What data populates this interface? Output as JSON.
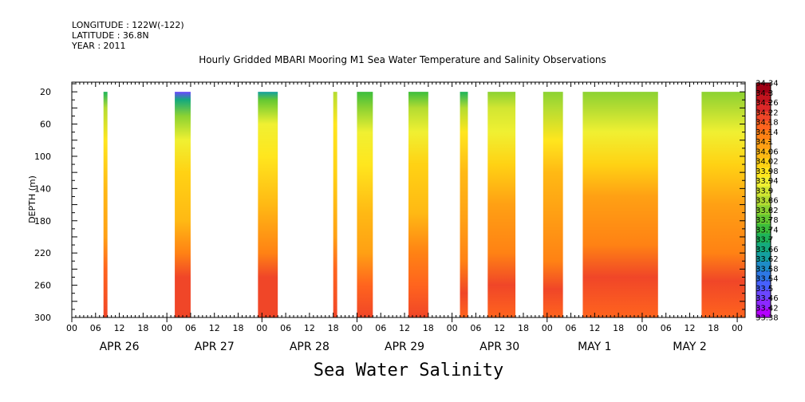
{
  "header": {
    "longitude": "LONGITUDE : 122W(-122)",
    "latitude": "LATITUDE : 36.8N",
    "year": "YEAR : 2011"
  },
  "chart_data": {
    "type": "heatmap",
    "title": "Hourly Gridded MBARI Mooring M1 Sea Water Temperature and Salinity Observations",
    "subtitle": "Sea Water Salinity",
    "ylabel": "DEPTH (m)",
    "y_direction": "down",
    "ylim": [
      300,
      8
    ],
    "yticks": [
      20,
      60,
      100,
      140,
      180,
      220,
      260,
      300
    ],
    "xlim": [
      0,
      170
    ],
    "x_unit": "hours since APR 26 00",
    "hour_tick_labels": [
      "00",
      "06",
      "12",
      "18",
      "00",
      "06",
      "12",
      "18",
      "00",
      "06",
      "12",
      "18",
      "00",
      "06",
      "12",
      "18",
      "00",
      "06",
      "12",
      "18",
      "00",
      "06",
      "12",
      "18",
      "00",
      "06",
      "12",
      "18",
      "00"
    ],
    "day_labels": [
      "APR 26",
      "APR 27",
      "APR 28",
      "APR 29",
      "APR 30",
      "MAY  1",
      "MAY  2"
    ],
    "colorbar": {
      "levels": [
        33.38,
        33.42,
        33.46,
        33.5,
        33.54,
        33.58,
        33.62,
        33.66,
        33.7,
        33.74,
        33.78,
        33.82,
        33.86,
        33.9,
        33.94,
        33.98,
        34.02,
        34.06,
        34.1,
        34.14,
        34.18,
        34.22,
        34.26,
        34.3,
        34.34
      ],
      "level_labels": [
        "33.38",
        "33.42",
        "33.46",
        "33.5",
        "33.54",
        "33.58",
        "33.62",
        "33.66",
        "33.7",
        "33.74",
        "33.78",
        "33.82",
        "33.86",
        "33.9",
        "33.94",
        "33.98",
        "34.02",
        "34.06",
        "34.1",
        "34.14",
        "34.18",
        "34.22",
        "34.26",
        "34.3",
        "34.34"
      ],
      "colors": [
        "#b400ff",
        "#8c28ff",
        "#6b46ff",
        "#4660ff",
        "#2d78e6",
        "#1e8cc8",
        "#14a0a0",
        "#14aa7d",
        "#1eb45a",
        "#3cbe3c",
        "#64c832",
        "#8cd232",
        "#b4dc32",
        "#d2e632",
        "#f0f032",
        "#ffe61e",
        "#ffd214",
        "#ffb914",
        "#ffa014",
        "#ff8214",
        "#ff641e",
        "#f04628",
        "#dc2828",
        "#c3141e",
        "#a00014"
      ]
    },
    "segments": [
      {
        "x_start": 8,
        "x_end": 9,
        "surface_salinity": 33.72,
        "profile": [
          [
            20,
            33.72
          ],
          [
            40,
            33.88
          ],
          [
            80,
            34.02
          ],
          [
            140,
            34.08
          ],
          [
            200,
            34.12
          ],
          [
            240,
            34.2
          ],
          [
            300,
            34.24
          ]
        ]
      },
      {
        "x_start": 26,
        "x_end": 30,
        "surface_salinity": 33.5,
        "profile": [
          [
            20,
            33.5
          ],
          [
            30,
            33.7
          ],
          [
            50,
            33.86
          ],
          [
            80,
            33.98
          ],
          [
            120,
            34.04
          ],
          [
            180,
            34.08
          ],
          [
            220,
            34.16
          ],
          [
            250,
            34.24
          ],
          [
            300,
            34.26
          ]
        ]
      },
      {
        "x_start": 47,
        "x_end": 52,
        "surface_salinity": 33.66,
        "profile": [
          [
            20,
            33.66
          ],
          [
            30,
            33.82
          ],
          [
            60,
            33.96
          ],
          [
            100,
            34.02
          ],
          [
            160,
            34.08
          ],
          [
            220,
            34.16
          ],
          [
            250,
            34.26
          ],
          [
            300,
            34.24
          ]
        ]
      },
      {
        "x_start": 66,
        "x_end": 67,
        "surface_salinity": 33.9,
        "profile": [
          [
            20,
            33.9
          ],
          [
            60,
            34.0
          ],
          [
            120,
            34.06
          ],
          [
            200,
            34.12
          ],
          [
            240,
            34.2
          ],
          [
            300,
            34.24
          ]
        ]
      },
      {
        "x_start": 72,
        "x_end": 76,
        "surface_salinity": 33.78,
        "profile": [
          [
            20,
            33.78
          ],
          [
            40,
            33.86
          ],
          [
            70,
            33.96
          ],
          [
            110,
            34.02
          ],
          [
            170,
            34.08
          ],
          [
            220,
            34.14
          ],
          [
            260,
            34.22
          ],
          [
            300,
            34.24
          ]
        ]
      },
      {
        "x_start": 85,
        "x_end": 90,
        "surface_salinity": 33.78,
        "profile": [
          [
            20,
            33.78
          ],
          [
            40,
            33.88
          ],
          [
            70,
            33.98
          ],
          [
            110,
            34.04
          ],
          [
            170,
            34.1
          ],
          [
            220,
            34.16
          ],
          [
            260,
            34.22
          ],
          [
            300,
            34.24
          ]
        ]
      },
      {
        "x_start": 98,
        "x_end": 100,
        "surface_salinity": 33.74,
        "profile": [
          [
            20,
            33.74
          ],
          [
            40,
            33.88
          ],
          [
            70,
            34.0
          ],
          [
            120,
            34.08
          ],
          [
            180,
            34.12
          ],
          [
            230,
            34.18
          ],
          [
            270,
            34.24
          ],
          [
            300,
            34.22
          ]
        ]
      },
      {
        "x_start": 105,
        "x_end": 112,
        "surface_salinity": 33.86,
        "profile": [
          [
            20,
            33.86
          ],
          [
            40,
            33.92
          ],
          [
            70,
            33.98
          ],
          [
            110,
            34.06
          ],
          [
            160,
            34.12
          ],
          [
            220,
            34.18
          ],
          [
            260,
            34.24
          ],
          [
            300,
            34.22
          ]
        ]
      },
      {
        "x_start": 119,
        "x_end": 124,
        "surface_salinity": 33.84,
        "profile": [
          [
            20,
            33.84
          ],
          [
            40,
            33.9
          ],
          [
            80,
            34.0
          ],
          [
            120,
            34.08
          ],
          [
            170,
            34.12
          ],
          [
            230,
            34.18
          ],
          [
            265,
            34.24
          ],
          [
            300,
            34.22
          ]
        ]
      },
      {
        "x_start": 129,
        "x_end": 148,
        "surface_salinity": 33.84,
        "profile": [
          [
            20,
            33.84
          ],
          [
            40,
            33.9
          ],
          [
            70,
            33.98
          ],
          [
            110,
            34.06
          ],
          [
            150,
            34.12
          ],
          [
            210,
            34.16
          ],
          [
            250,
            34.24
          ],
          [
            300,
            34.22
          ]
        ]
      },
      {
        "x_start": 159,
        "x_end": 170,
        "surface_salinity": 33.86,
        "profile": [
          [
            20,
            33.86
          ],
          [
            40,
            33.9
          ],
          [
            70,
            33.98
          ],
          [
            110,
            34.06
          ],
          [
            160,
            34.12
          ],
          [
            220,
            34.16
          ],
          [
            255,
            34.24
          ],
          [
            300,
            34.22
          ]
        ]
      }
    ]
  }
}
